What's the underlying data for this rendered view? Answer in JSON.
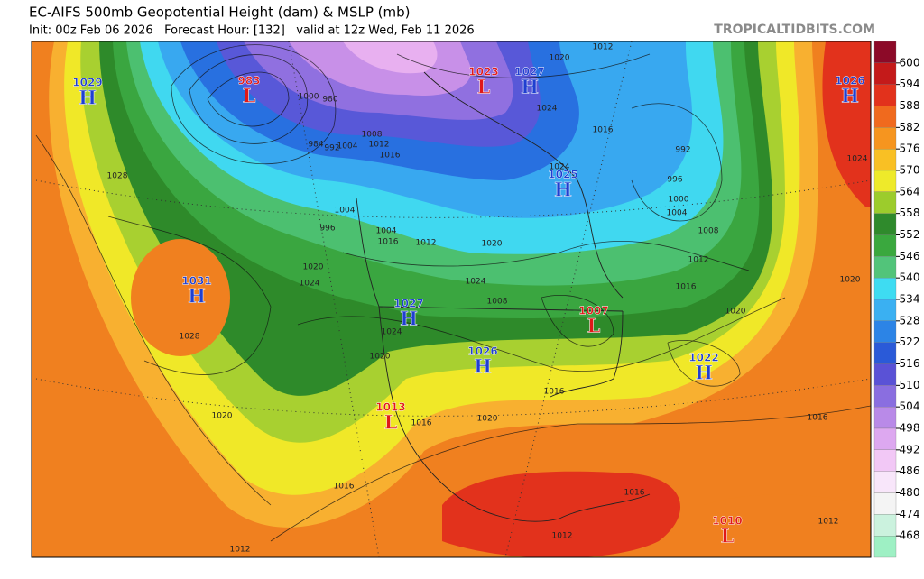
{
  "header": {
    "title": "EC-AIFS 500mb Geopotential Height (dam) & MSLP (mb)",
    "subtitle": "Init: 00z Feb 06 2026   Forecast Hour: [132]   valid at 12z Wed, Feb 11 2026",
    "watermark": "TROPICALTIDBITS.COM"
  },
  "colorbar": {
    "levels": [
      600,
      594,
      588,
      582,
      576,
      570,
      564,
      558,
      552,
      546,
      540,
      534,
      528,
      522,
      516,
      510,
      504,
      498,
      492,
      486,
      480,
      474,
      468
    ],
    "colors": [
      "#8c0a28",
      "#c41a1a",
      "#e2321c",
      "#f06a1e",
      "#f6951f",
      "#f9c024",
      "#eeea2a",
      "#9ccc2c",
      "#2f8a2c",
      "#3aa83e",
      "#52c47a",
      "#3edcf2",
      "#3ab0f2",
      "#2c84e6",
      "#2a5ad8",
      "#5a52d6",
      "#8a6ee0",
      "#b98ae8",
      "#dda8f0",
      "#f2c8f6",
      "#f8e6fa",
      "#f4f4f4",
      "#cbf2de",
      "#9ef0c4"
    ]
  },
  "centers": [
    {
      "letter": "H",
      "pressure": 1029
    },
    {
      "letter": "L",
      "pressure": 983
    },
    {
      "letter": "L",
      "pressure": 1023
    },
    {
      "letter": "H",
      "pressure": 1027
    },
    {
      "letter": "H",
      "pressure": 1026
    },
    {
      "letter": "H",
      "pressure": 1025
    },
    {
      "letter": "H",
      "pressure": 1031
    },
    {
      "letter": "H",
      "pressure": 1027
    },
    {
      "letter": "L",
      "pressure": 1007
    },
    {
      "letter": "H",
      "pressure": 1026
    },
    {
      "letter": "H",
      "pressure": 1022
    },
    {
      "letter": "L",
      "pressure": 1013
    },
    {
      "letter": "L",
      "pressure": 1010
    }
  ],
  "contour_labels": [
    1028,
    1020,
    1024,
    1028,
    1020,
    1016,
    1012,
    1016,
    1020,
    1016,
    1016,
    1012,
    1016,
    1020,
    1020,
    1024,
    1016,
    1012,
    1012,
    1008,
    1004,
    1000,
    996,
    992,
    1016,
    1012,
    1020,
    1024,
    1024,
    1020,
    1024,
    1008,
    1012,
    1016,
    1004,
    1004,
    996,
    1000,
    980,
    984,
    992,
    1004,
    1008,
    1012,
    1016,
    1024,
    1020
  ]
}
